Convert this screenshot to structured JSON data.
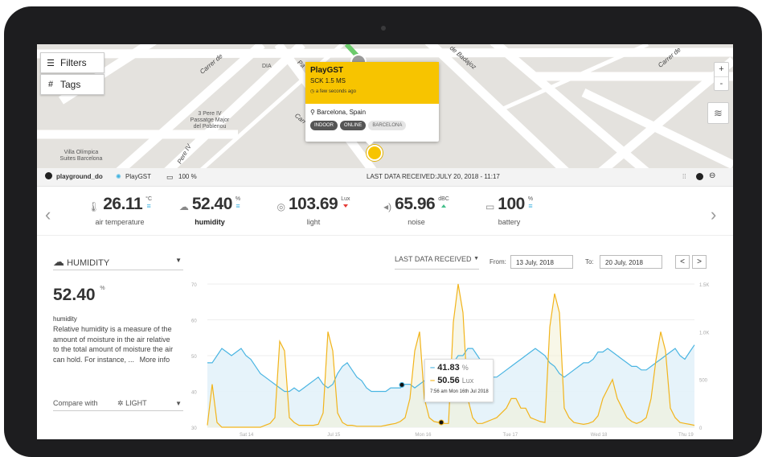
{
  "map": {
    "filters_label": "Filters",
    "tags_label": "Tags",
    "places": [
      {
        "name": "DIA"
      },
      {
        "name": "3 Pere IV\nPassatge Major\ndel Poblenou"
      },
      {
        "name": "Villa Olímpica\nSuites Barcelona"
      }
    ],
    "streets": [
      "Carrer de",
      "Carrer de",
      "de Badajoz",
      "Pa",
      "Carr",
      "Pere IV"
    ],
    "zoom_in": "+",
    "zoom_out": "-"
  },
  "popup": {
    "name": "PlayGST",
    "kit": "SCK 1.5 MS",
    "updated": "a few seconds ago",
    "location": "Barcelona, Spain",
    "tags": [
      "INDOOR",
      "ONLINE",
      "BARCELONA"
    ]
  },
  "status": {
    "owner": "playground_do",
    "device": "PlayGST",
    "battery": "100 %",
    "last_data": "LAST DATA RECEIVED:JULY 20, 2018 - 11:17"
  },
  "readings": [
    {
      "value": "26.11",
      "unit": "°C",
      "label": "air temperature",
      "icon": "thermometer-icon",
      "trend": "steady"
    },
    {
      "value": "52.40",
      "unit": "%",
      "label": "humidity",
      "icon": "humidity-icon",
      "trend": "steady"
    },
    {
      "value": "103.69",
      "unit": "Lux",
      "label": "light",
      "icon": "light-icon",
      "trend": "down"
    },
    {
      "value": "65.96",
      "unit": "dBC",
      "label": "noise",
      "icon": "noise-icon",
      "trend": "up"
    },
    {
      "value": "100",
      "unit": "%",
      "label": "battery",
      "icon": "battery-icon",
      "trend": "steady"
    }
  ],
  "detail": {
    "sensor": "HUMIDITY",
    "value": "52.40",
    "unit": "%",
    "desc_title": "humidity",
    "description": "Relative humidity is a measure of the amount of moisture in the air relative to the total amount of moisture the air can hold. For instance, ...",
    "more_info": "More info",
    "compare_label": "Compare with",
    "compare_sensor": "LIGHT"
  },
  "controls": {
    "range": "LAST DATA RECEIVED",
    "from_label": "From:",
    "from_value": "13 July, 2018",
    "to_label": "To:",
    "to_value": "20 July, 2018",
    "prev": "<",
    "next": ">"
  },
  "tooltip": {
    "humidity": "41.83",
    "humidity_unit": "%",
    "light": "50.56",
    "light_unit": "Lux",
    "date": "7:56 am Mon 16th Jul 2018"
  },
  "chart_data": {
    "type": "line",
    "left_axis": {
      "ticks": [
        70,
        60,
        50,
        40,
        30
      ],
      "ylim": [
        30,
        70
      ]
    },
    "right_axis": {
      "ticks": [
        "1.5K",
        "1.0K",
        "500",
        "0"
      ],
      "ylim": [
        0,
        1500
      ]
    },
    "x_ticks": [
      "Sat 14",
      "Jul 15",
      "Mon 16",
      "Tue 17",
      "Wed 18",
      "Thu 19"
    ],
    "series": [
      {
        "name": "humidity",
        "color": "#4ab5e2",
        "values": [
          48,
          48,
          50,
          52,
          51,
          50,
          51,
          52,
          50,
          49,
          47,
          45,
          44,
          43,
          42,
          41,
          40,
          40,
          41,
          40,
          41,
          42,
          43,
          44,
          42,
          41,
          42,
          45,
          47,
          48,
          46,
          44,
          43,
          41,
          40,
          40,
          40,
          40,
          41,
          41,
          41,
          42,
          42,
          41,
          42,
          43,
          44,
          45,
          46,
          47,
          48,
          48,
          50,
          50,
          52,
          52,
          50,
          48,
          46,
          44,
          44,
          45,
          46,
          47,
          48,
          49,
          50,
          51,
          52,
          51,
          50,
          48,
          47,
          45,
          44,
          45,
          46,
          47,
          48,
          48,
          49,
          51,
          51,
          52,
          51,
          50,
          49,
          48,
          47,
          47,
          46,
          46,
          47,
          48,
          49,
          50,
          51,
          52,
          50,
          49,
          51,
          53
        ]
      },
      {
        "name": "light",
        "color": "#f2b41b",
        "values": [
          20,
          450,
          50,
          0,
          0,
          0,
          0,
          0,
          0,
          0,
          0,
          0,
          20,
          40,
          100,
          900,
          800,
          100,
          50,
          20,
          20,
          20,
          20,
          30,
          150,
          1000,
          800,
          150,
          50,
          20,
          20,
          10,
          10,
          10,
          10,
          10,
          10,
          20,
          30,
          40,
          60,
          100,
          300,
          800,
          1000,
          300,
          100,
          60,
          50,
          40,
          40,
          1100,
          1500,
          1200,
          300,
          100,
          40,
          40,
          60,
          80,
          100,
          150,
          200,
          300,
          300,
          200,
          200,
          100,
          80,
          60,
          50,
          1050,
          1400,
          1200,
          200,
          100,
          50,
          40,
          30,
          40,
          60,
          120,
          300,
          400,
          500,
          300,
          200,
          100,
          60,
          40,
          60,
          100,
          300,
          700,
          1000,
          800,
          200,
          100,
          50,
          40,
          30,
          20
        ]
      }
    ]
  }
}
